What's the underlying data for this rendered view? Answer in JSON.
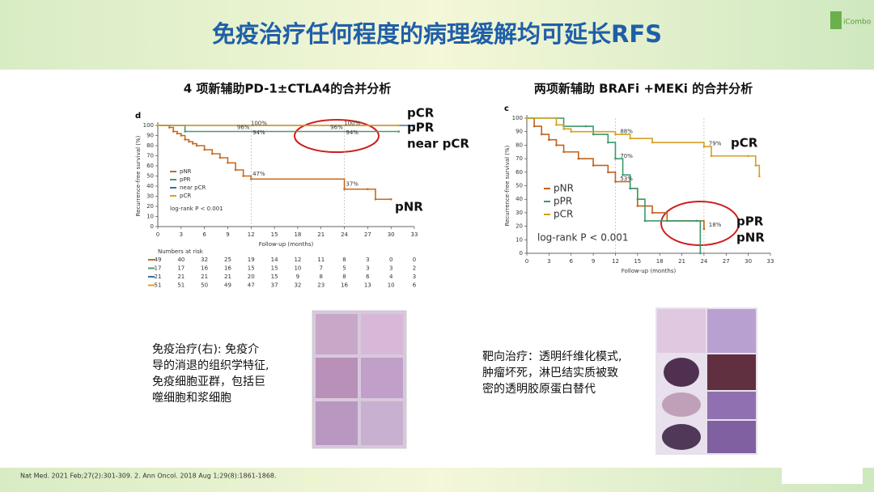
{
  "title": "免疫治疗任何程度的病理缓解均可延长RFS",
  "logo": "iCombo",
  "left_caption": [
    "免疫治疗(右): 免疫介",
    "导的消退的组织学特征,",
    "免疫细胞亚群，包括巨",
    "噬细胞和浆细胞"
  ],
  "right_caption": [
    "靶向治疗：透明纤维化模式,",
    "肿瘤坏死，淋巴结实质被致",
    "密的透明胶原蛋白替代"
  ],
  "citation": "Nat Med. 2021 Feb;27(2):301-309. 2. Ann Oncol. 2018 Aug 1;29(8):1861-1868.",
  "chart_data": [
    {
      "type": "line",
      "step": true,
      "heading": "4 项新辅助PD-1±CTLA4的合并分析",
      "panel_label": "d",
      "xlabel": "Follow-up (months)",
      "ylabel": "Recurrence-free survival (%)",
      "xlim": [
        0,
        33
      ],
      "ylim": [
        0,
        100
      ],
      "xticks": [
        0,
        3,
        6,
        9,
        12,
        15,
        18,
        21,
        24,
        27,
        30,
        33
      ],
      "yticks": [
        0,
        10,
        20,
        30,
        40,
        50,
        60,
        70,
        80,
        90,
        100
      ],
      "stat_label": "log-rank P < 0.001",
      "series": [
        {
          "name": "pNR",
          "color": "#c8691e",
          "x": [
            0,
            1.5,
            2,
            2.5,
            3,
            3.5,
            4,
            4.5,
            5,
            6,
            7,
            8,
            9,
            10,
            11,
            12,
            24,
            27,
            28,
            30
          ],
          "values": [
            100,
            98,
            94,
            92,
            90,
            86,
            84,
            82,
            80,
            76,
            72,
            68,
            63,
            56,
            50,
            47,
            37,
            37,
            27,
            27
          ]
        },
        {
          "name": "pPR",
          "color": "#4a9a6a",
          "x": [
            0,
            3.5,
            31
          ],
          "values": [
            100,
            94,
            94
          ]
        },
        {
          "name": "near pCR",
          "color": "#3a6ea5",
          "x": [
            0,
            33
          ],
          "values": [
            100,
            100
          ]
        },
        {
          "name": "pCR",
          "color": "#e0a020",
          "x": [
            0,
            31
          ],
          "values": [
            100,
            100
          ]
        }
      ],
      "annotations": [
        "96%",
        "100%",
        "94%",
        "96%",
        "100%",
        "94%",
        "47%",
        "37%"
      ],
      "at_risk": {
        "title": "Numbers at risk",
        "rows": [
          [
            49,
            40,
            32,
            25,
            19,
            14,
            12,
            11,
            8,
            3,
            0,
            0
          ],
          [
            17,
            17,
            16,
            16,
            15,
            15,
            10,
            7,
            5,
            3,
            3,
            2
          ],
          [
            21,
            21,
            21,
            21,
            20,
            15,
            9,
            8,
            8,
            6,
            4,
            3
          ],
          [
            51,
            51,
            50,
            49,
            47,
            37,
            32,
            23,
            16,
            13,
            10,
            6
          ]
        ]
      }
    },
    {
      "type": "line",
      "step": true,
      "heading": "两项新辅助 BRAFi +MEKi 的合并分析",
      "panel_label": "c",
      "xlabel": "Follow-up (months)",
      "ylabel": "Recurrence-free survival (%)",
      "xlim": [
        0,
        33
      ],
      "ylim": [
        0,
        100
      ],
      "xticks": [
        0,
        3,
        6,
        9,
        12,
        15,
        18,
        21,
        24,
        27,
        30,
        33
      ],
      "yticks": [
        0,
        10,
        20,
        30,
        40,
        50,
        60,
        70,
        80,
        90,
        100
      ],
      "stat_label": "log-rank P < 0.001",
      "series": [
        {
          "name": "pNR",
          "color": "#c0621e",
          "x": [
            0,
            1,
            2,
            3,
            4,
            5,
            7,
            9,
            11,
            12,
            14,
            15,
            17,
            19,
            24
          ],
          "values": [
            100,
            94,
            88,
            84,
            80,
            75,
            70,
            65,
            60,
            53,
            48,
            35,
            30,
            24,
            18
          ]
        },
        {
          "name": "pPR",
          "color": "#3a9a6a",
          "x": [
            0,
            5,
            8,
            9,
            11,
            12,
            13,
            14,
            15,
            16,
            23,
            23.5
          ],
          "values": [
            100,
            94,
            94,
            88,
            82,
            70,
            58,
            48,
            40,
            24,
            24,
            0
          ]
        },
        {
          "name": "pCR",
          "color": "#d4a020",
          "x": [
            0,
            4,
            5,
            6,
            12,
            14,
            17,
            24,
            25,
            30,
            31,
            31.5
          ],
          "values": [
            100,
            95,
            92,
            90,
            88,
            85,
            82,
            79,
            72,
            72,
            65,
            57
          ]
        }
      ],
      "annotations": [
        "88%",
        "70%",
        "53%",
        "79%",
        "18%"
      ]
    }
  ]
}
